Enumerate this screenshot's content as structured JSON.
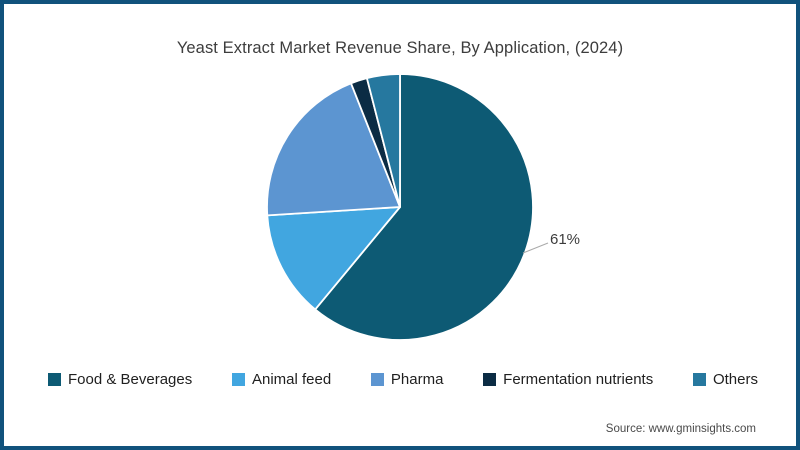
{
  "page": {
    "background": "#ffffff",
    "border_color": "#11527c"
  },
  "header": {
    "title": "Yeast Extract Market Revenue Share, By Application, (2024)"
  },
  "footer": {
    "source": "Source: www.gminsights.com"
  },
  "chart_data": {
    "type": "pie",
    "title": "Yeast Extract Market Revenue Share, By Application, (2024)",
    "categories": [
      "Food & Beverages",
      "Animal feed",
      "Pharma",
      "Fermentation nutrients",
      "Others"
    ],
    "values": [
      61,
      13,
      20,
      2,
      4
    ],
    "unit": "%",
    "colors": [
      "#0d5a74",
      "#41a6e0",
      "#5c95d1",
      "#0b2c44",
      "#26789f"
    ],
    "start_angle_deg": -90,
    "direction": "clockwise",
    "slice_gap_color": "#ffffff",
    "legend_position": "bottom",
    "annotations": [
      {
        "slice": "Food & Beverages",
        "text": "61%"
      }
    ]
  }
}
